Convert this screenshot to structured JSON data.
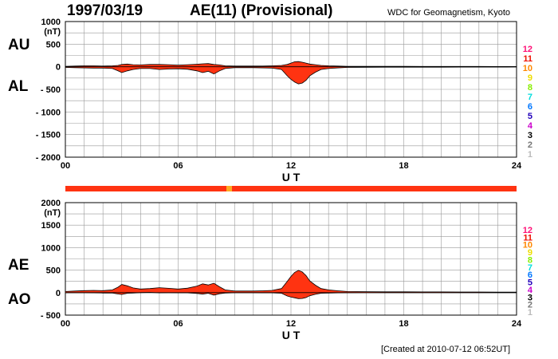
{
  "header": {
    "date": "1997/03/19",
    "title": "AE(11) (Provisional)",
    "organization": "WDC for Geomagnetism, Kyoto"
  },
  "footer": {
    "created": "[Created at 2010-07-12 06:52UT]"
  },
  "colors": {
    "fill": "#ff3311",
    "outline": "#000000",
    "grid": "#999999",
    "bar": "#ff3311",
    "bar_highlight": "#ffaa22"
  },
  "station_legend": [
    {
      "label": "12",
      "color": "#ff1177"
    },
    {
      "label": "11",
      "color": "#ee1100"
    },
    {
      "label": "10",
      "color": "#ff8800"
    },
    {
      "label": "9",
      "color": "#eedd00"
    },
    {
      "label": "8",
      "color": "#88ee00"
    },
    {
      "label": "7",
      "color": "#00dddd"
    },
    {
      "label": "6",
      "color": "#0077ff"
    },
    {
      "label": "5",
      "color": "#2200bb"
    },
    {
      "label": "4",
      "color": "#cc00cc"
    },
    {
      "label": "3",
      "color": "#000000"
    },
    {
      "label": "2",
      "color": "#777777"
    },
    {
      "label": "1",
      "color": "#bbbbbb"
    }
  ],
  "chart_data": [
    {
      "type": "area",
      "series_labels": [
        "AU",
        "AL"
      ],
      "unit": "(nT)",
      "xlabel": "U T",
      "xlim": [
        0,
        24
      ],
      "ylim": [
        -2000,
        1000
      ],
      "x_ticks": [
        "00",
        "06",
        "12",
        "18",
        "24"
      ],
      "y_ticks": [
        "1000",
        "500",
        "0",
        "- 500",
        "- 1000",
        "- 1500",
        "- 2000"
      ],
      "grid": true,
      "x": [
        0,
        0.5,
        1,
        1.5,
        2,
        2.5,
        2.8,
        3,
        3.3,
        3.6,
        4,
        4.5,
        5,
        5.5,
        6,
        6.5,
        7,
        7.3,
        7.6,
        7.9,
        8.2,
        8.5,
        9,
        9.5,
        10,
        10.5,
        11,
        11.5,
        11.8,
        12,
        12.2,
        12.4,
        12.6,
        12.8,
        13,
        13.3,
        13.6,
        14,
        14.5,
        15,
        16,
        17,
        18,
        19,
        20,
        21,
        22,
        23,
        24
      ],
      "series": [
        {
          "name": "AU",
          "values": [
            10,
            15,
            20,
            20,
            15,
            20,
            30,
            50,
            60,
            45,
            40,
            50,
            50,
            45,
            35,
            45,
            55,
            65,
            70,
            50,
            40,
            20,
            15,
            15,
            15,
            15,
            20,
            30,
            50,
            80,
            110,
            115,
            100,
            80,
            60,
            45,
            30,
            20,
            15,
            10,
            10,
            8,
            8,
            6,
            6,
            6,
            6,
            5,
            5
          ]
        },
        {
          "name": "AL",
          "values": [
            -15,
            -20,
            -25,
            -30,
            -30,
            -40,
            -90,
            -130,
            -90,
            -60,
            -40,
            -40,
            -60,
            -50,
            -45,
            -55,
            -90,
            -130,
            -100,
            -160,
            -90,
            -40,
            -20,
            -20,
            -20,
            -25,
            -30,
            -60,
            -200,
            -280,
            -340,
            -380,
            -360,
            -300,
            -200,
            -120,
            -60,
            -40,
            -25,
            -15,
            -12,
            -10,
            -10,
            -10,
            -10,
            -8,
            -8,
            -8,
            -6
          ]
        }
      ]
    },
    {
      "type": "area",
      "series_labels": [
        "AE",
        "AO"
      ],
      "unit": "(nT)",
      "xlabel": "U T",
      "xlim": [
        0,
        24
      ],
      "ylim": [
        -500,
        2000
      ],
      "x_ticks": [
        "00",
        "06",
        "12",
        "18",
        "24"
      ],
      "y_ticks": [
        "2000",
        "1500",
        "1000",
        "500",
        "0",
        "- 500"
      ],
      "grid": true,
      "x": [
        0,
        0.5,
        1,
        1.5,
        2,
        2.5,
        2.8,
        3,
        3.3,
        3.6,
        4,
        4.5,
        5,
        5.5,
        6,
        6.5,
        7,
        7.3,
        7.6,
        7.9,
        8.2,
        8.5,
        9,
        9.5,
        10,
        10.5,
        11,
        11.5,
        11.8,
        12,
        12.2,
        12.4,
        12.6,
        12.8,
        13,
        13.3,
        13.6,
        14,
        14.5,
        15,
        16,
        17,
        18,
        19,
        20,
        21,
        22,
        23,
        24
      ],
      "series": [
        {
          "name": "AE",
          "values": [
            25,
            35,
            45,
            50,
            45,
            60,
            120,
            180,
            150,
            105,
            80,
            90,
            110,
            95,
            80,
            100,
            145,
            195,
            170,
            210,
            130,
            60,
            35,
            35,
            35,
            40,
            50,
            90,
            250,
            360,
            450,
            495,
            460,
            380,
            260,
            165,
            90,
            60,
            40,
            25,
            22,
            18,
            18,
            16,
            16,
            14,
            14,
            13,
            11
          ]
        },
        {
          "name": "AO",
          "values": [
            -3,
            -3,
            -3,
            -5,
            -8,
            -10,
            -30,
            -40,
            -15,
            -8,
            0,
            5,
            -5,
            -3,
            -5,
            -5,
            -18,
            -33,
            -15,
            -55,
            -25,
            -10,
            -3,
            -3,
            -3,
            -5,
            -5,
            -15,
            -75,
            -100,
            -115,
            -133,
            -130,
            -110,
            -70,
            -38,
            -15,
            -10,
            -5,
            -3,
            -1,
            -1,
            -1,
            -2,
            -2,
            -1,
            -1,
            -2,
            -1
          ]
        }
      ]
    }
  ]
}
